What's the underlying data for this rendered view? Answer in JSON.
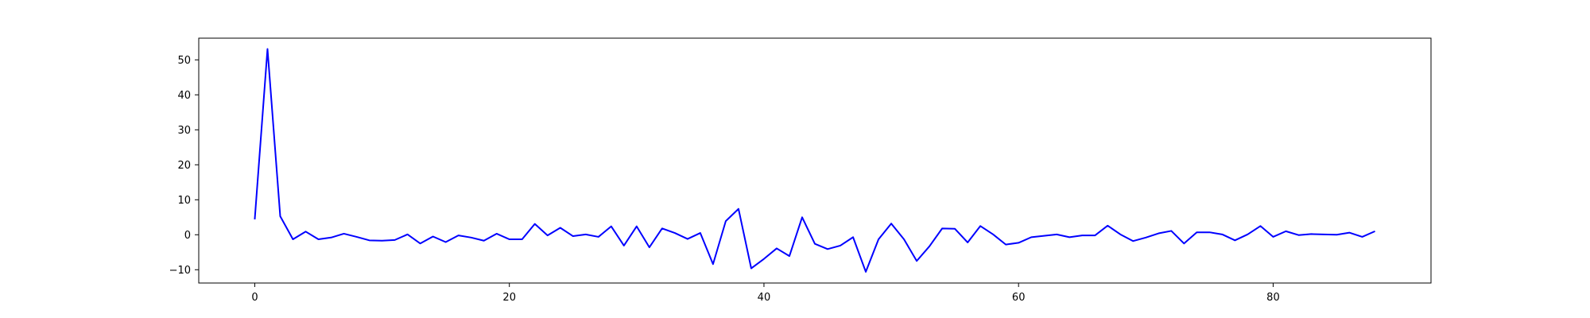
{
  "chart_data": {
    "type": "line",
    "title": "",
    "xlabel": "",
    "ylabel": "",
    "xlim": [
      -4.4,
      92.4
    ],
    "ylim": [
      -13.8,
      56.2
    ],
    "xticks": [
      0,
      20,
      40,
      60,
      80
    ],
    "yticks": [
      -10,
      0,
      10,
      20,
      30,
      40,
      50
    ],
    "grid": false,
    "series": [
      {
        "name": "",
        "color": "#0000ff",
        "x": [
          0,
          1,
          2,
          3,
          4,
          5,
          6,
          7,
          8,
          9,
          10,
          11,
          12,
          13,
          14,
          15,
          16,
          17,
          18,
          19,
          20,
          21,
          22,
          23,
          24,
          25,
          26,
          27,
          28,
          29,
          30,
          31,
          32,
          33,
          34,
          35,
          36,
          37,
          38,
          39,
          40,
          41,
          42,
          43,
          44,
          45,
          46,
          47,
          48,
          49,
          50,
          51,
          52,
          53,
          54,
          55,
          56,
          57,
          58,
          59,
          60,
          61,
          62,
          63,
          64,
          65,
          66,
          67,
          68,
          69,
          70,
          71,
          72,
          73,
          74,
          75,
          76,
          77,
          78,
          79,
          80,
          81,
          82,
          83,
          84,
          85,
          86,
          87,
          88
        ],
        "values": [
          4.4,
          53.1,
          5.3,
          -1.3,
          0.9,
          -1.3,
          -0.8,
          0.3,
          -0.6,
          -1.6,
          -1.7,
          -1.5,
          0.1,
          -2.5,
          -0.5,
          -2.1,
          -0.2,
          -0.8,
          -1.7,
          0.3,
          -1.3,
          -1.3,
          3.1,
          -0.2,
          2.0,
          -0.4,
          0.1,
          -0.6,
          2.4,
          -3.1,
          2.4,
          -3.6,
          1.8,
          0.5,
          -1.2,
          0.5,
          -8.4,
          3.9,
          7.4,
          -9.6,
          -6.9,
          -3.9,
          -6.1,
          5.0,
          -2.6,
          -4.1,
          -3.1,
          -0.7,
          -10.6,
          -1.3,
          3.2,
          -1.3,
          -7.5,
          -3.3,
          1.8,
          1.7,
          -2.2,
          2.5,
          0.1,
          -2.8,
          -2.3,
          -0.7,
          -0.3,
          0.1,
          -0.7,
          -0.2,
          -0.2,
          2.6,
          0.1,
          -1.8,
          -0.8,
          0.4,
          1.1,
          -2.5,
          0.7,
          0.7,
          0.1,
          -1.6,
          0.1,
          2.5,
          -0.6,
          1.0,
          -0.1,
          0.2,
          0.1,
          0.0,
          0.6,
          -0.6,
          1.0
        ]
      }
    ]
  }
}
